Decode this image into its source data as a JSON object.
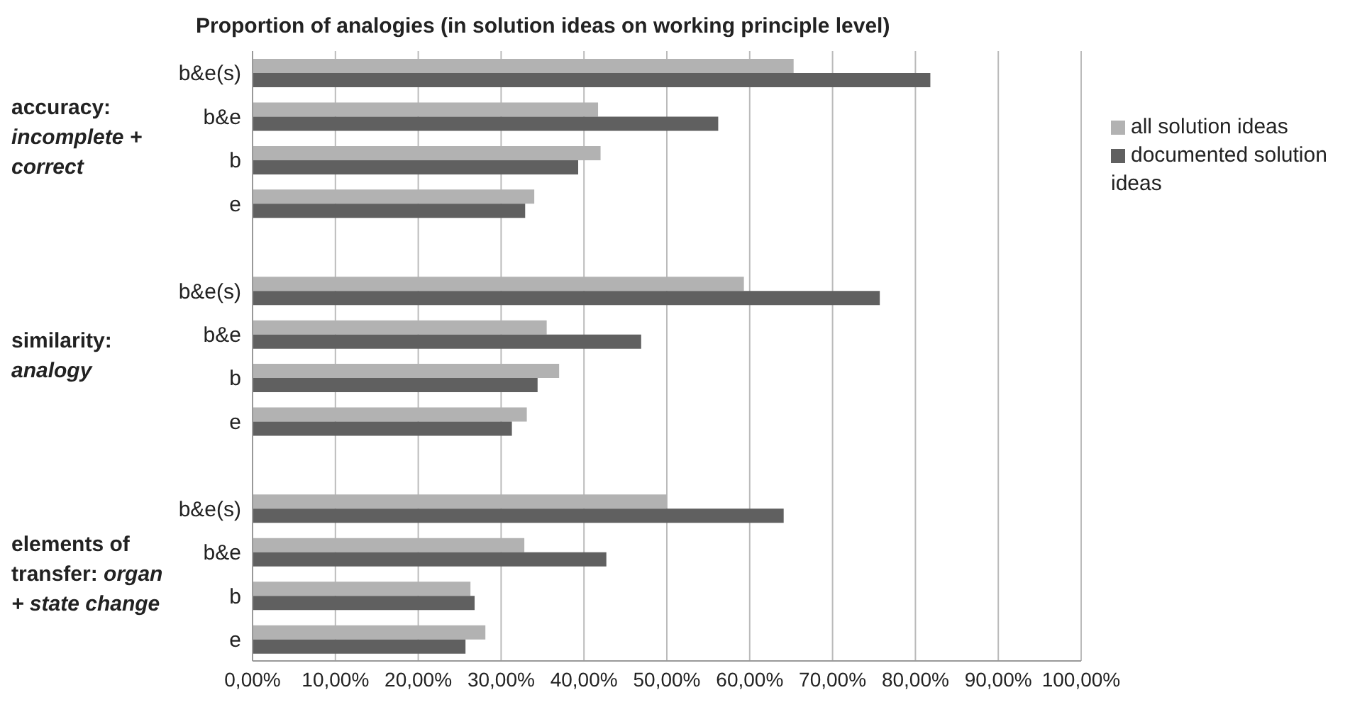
{
  "chart_data": {
    "type": "bar",
    "orientation": "horizontal",
    "title": "Proportion of analogies (in solution ideas on working principle level)",
    "categories": [
      "b&e(s)",
      "b&e",
      "b",
      "e",
      null,
      "b&e(s)",
      "b&e",
      "b",
      "e",
      null,
      "b&e(s)",
      "b&e",
      "b",
      "e"
    ],
    "series": [
      {
        "name": "all solution ideas",
        "color": "#b2b2b2",
        "values": [
          65.3,
          41.7,
          42.0,
          34.0,
          null,
          59.3,
          35.5,
          37.0,
          33.1,
          null,
          50.0,
          32.8,
          26.3,
          28.1
        ]
      },
      {
        "name": "documented solution ideas",
        "color": "#606060",
        "values": [
          81.8,
          56.2,
          39.3,
          32.9,
          null,
          75.7,
          46.9,
          34.4,
          31.3,
          null,
          64.1,
          42.7,
          26.8,
          25.7
        ]
      }
    ],
    "annotations": [
      "accuracy: incomplete + correct",
      "similarity: analogy",
      "elements of transfer: organ + state change"
    ],
    "xlim": [
      0,
      100
    ],
    "xticks": [
      {
        "value": 0,
        "label": "0,00%"
      },
      {
        "value": 10,
        "label": "10,00%"
      },
      {
        "value": 20,
        "label": "20,00%"
      },
      {
        "value": 30,
        "label": "30,00%"
      },
      {
        "value": 40,
        "label": "40,00%"
      },
      {
        "value": 50,
        "label": "50,00%"
      },
      {
        "value": 60,
        "label": "60,00%"
      },
      {
        "value": 70,
        "label": "70,00%"
      },
      {
        "value": 80,
        "label": "80,00%"
      },
      {
        "value": 90,
        "label": "90,00%"
      },
      {
        "value": 100,
        "label": "100,00%"
      }
    ],
    "grid": "x",
    "legend": "right"
  }
}
